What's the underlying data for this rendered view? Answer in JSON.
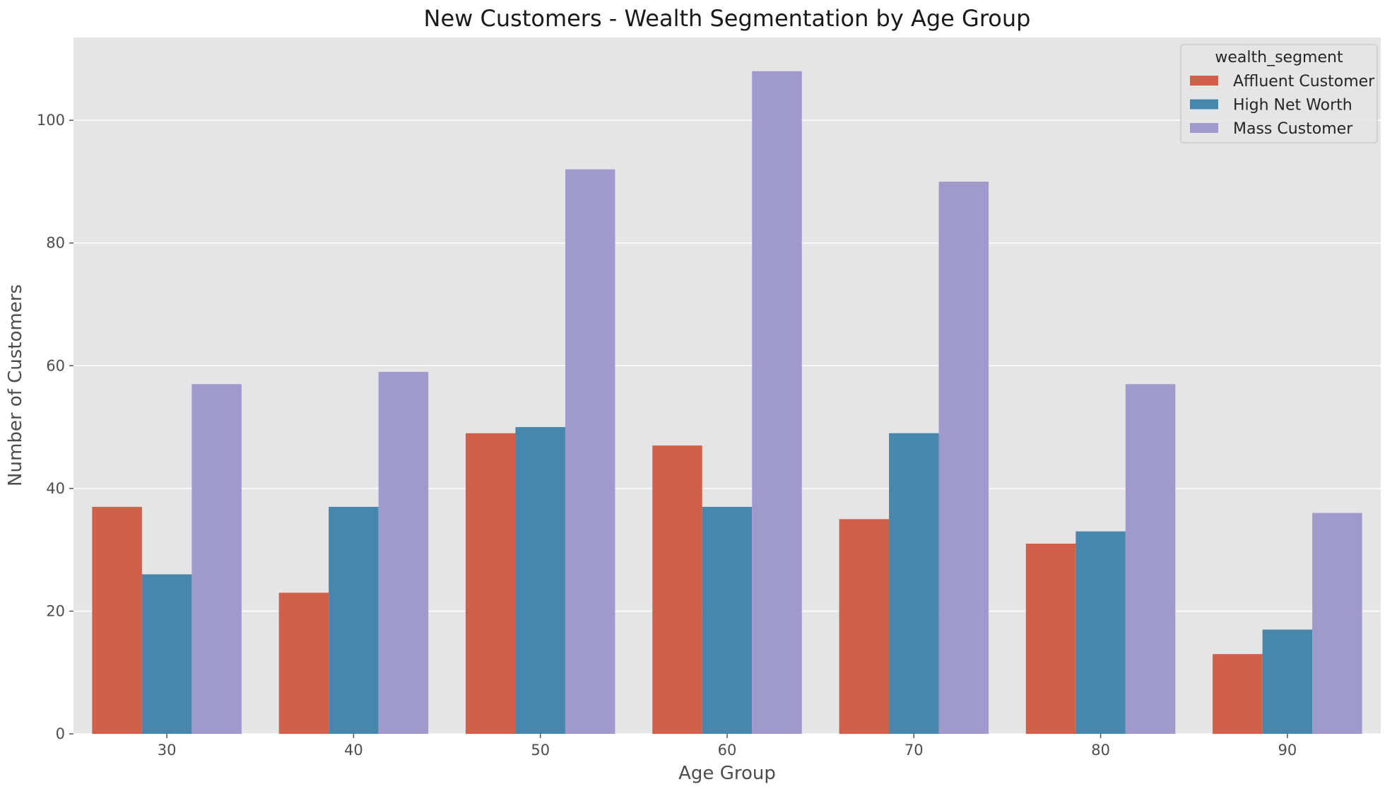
{
  "chart_data": {
    "type": "bar",
    "title": "New Customers - Wealth Segmentation by Age Group",
    "xlabel": "Age Group",
    "ylabel": "Number of Customers",
    "categories": [
      "30",
      "40",
      "50",
      "60",
      "70",
      "80",
      "90"
    ],
    "series": [
      {
        "name": "Affluent Customer",
        "color": "#d1604b",
        "values": [
          37,
          23,
          49,
          47,
          35,
          31,
          13
        ]
      },
      {
        "name": "High Net Worth",
        "color": "#4787ae",
        "values": [
          26,
          37,
          50,
          37,
          49,
          33,
          17
        ]
      },
      {
        "name": "Mass Customer",
        "color": "#a09acc",
        "values": [
          57,
          59,
          92,
          108,
          90,
          57,
          36
        ]
      }
    ],
    "ylim": [
      0,
      113.5
    ],
    "yticks": [
      0,
      20,
      40,
      60,
      80,
      100
    ],
    "grid": true,
    "legend": {
      "title": "wealth_segment",
      "placement": "top-right"
    }
  }
}
